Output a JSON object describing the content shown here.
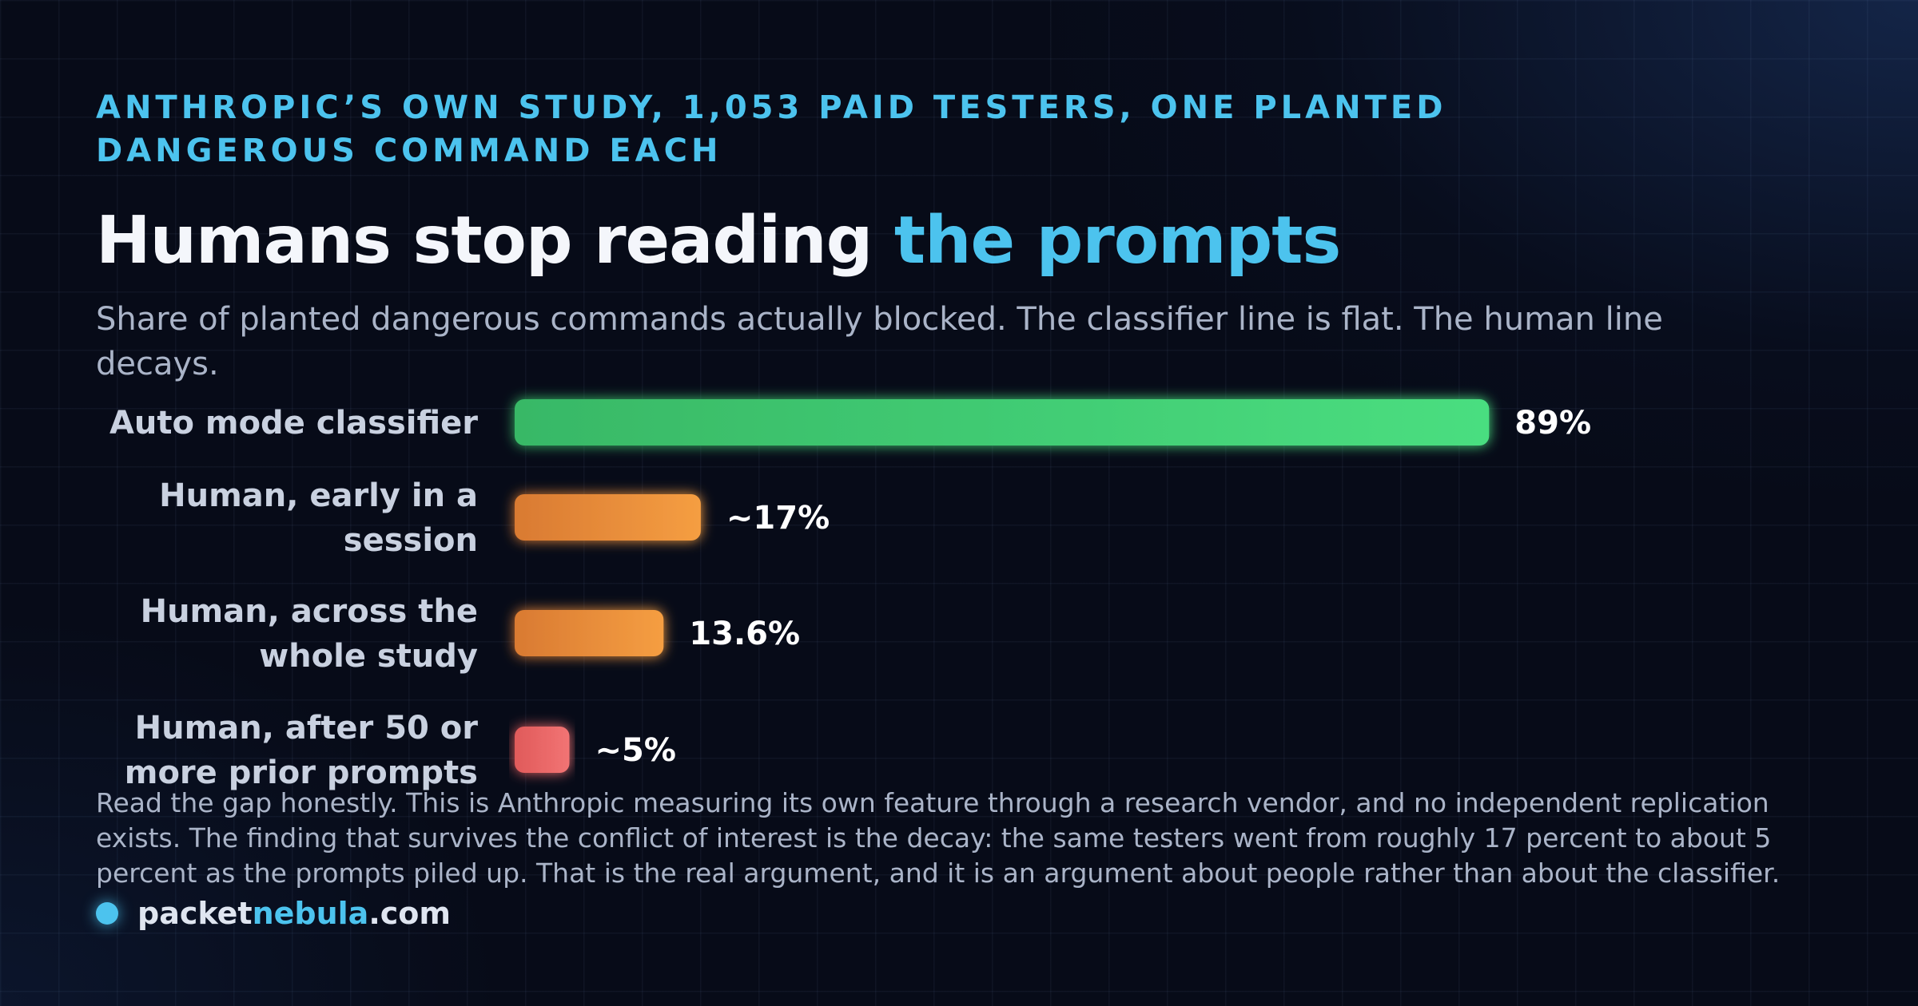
{
  "header": {
    "kicker": "ANTHROPIC’S OWN STUDY, 1,053 PAID TESTERS, ONE PLANTED DANGEROUS COMMAND EACH",
    "title_main": "Humans stop reading ",
    "title_accent": "the prompts",
    "subtitle": "Share of planted dangerous commands actually blocked. The classifier line is flat. The human line decays."
  },
  "chart_data": {
    "type": "bar",
    "orientation": "horizontal",
    "categories": [
      "Auto mode classifier",
      "Human, early in a session",
      "Human, across the whole study",
      "Human, after 50 or more prior prompts"
    ],
    "category_lines": [
      [
        "Auto mode classifier"
      ],
      [
        "Human, early in a",
        "session"
      ],
      [
        "Human, across the",
        "whole study"
      ],
      [
        "Human, after 50 or",
        "more prior prompts"
      ]
    ],
    "values": [
      89,
      17,
      13.6,
      5
    ],
    "value_labels": [
      "89%",
      "~17%",
      "13.6%",
      "~5%"
    ],
    "unit": "%",
    "xlim": [
      0,
      100
    ],
    "colors": [
      "#4ade80",
      "#f59e42",
      "#f59e42",
      "#f06b6b"
    ],
    "grid": false,
    "legend": "none"
  },
  "footer": {
    "note": "Read the gap honestly. This is Anthropic measuring its own feature through a research vendor, and no independent replication exists. The finding that survives the conflict of interest is the decay: the same testers went from roughly 17 percent to about 5 percent as the prompts piled up. That is the real argument, and it is an argument about people rather than about the classifier.",
    "brand_pre": "packet",
    "brand_accent": "nebula",
    "brand_post": ".com"
  },
  "theme": {
    "background": "#070b18",
    "accent": "#4cc3ee",
    "classifier_green": "#4ade80",
    "human_orange": "#f59e42",
    "late_red": "#f06b6b"
  }
}
